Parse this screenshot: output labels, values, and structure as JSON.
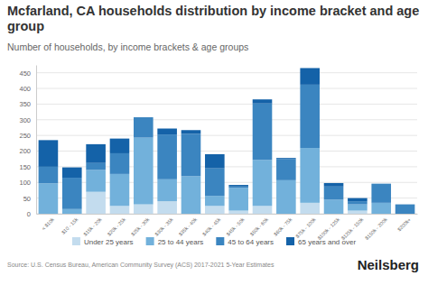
{
  "chart_data": {
    "type": "bar",
    "stacked": true,
    "title": "Mcfarland, CA households distribution by income bracket and age group",
    "subtitle": "Number of households, by income brackets & age groups",
    "source": "Source: U.S. Census Bureau, American Community Survey (ACS) 2017-2021 5-Year Estimates",
    "logo": "Neilsberg",
    "categories": [
      "< $10k",
      "$10 - 15k",
      "$15k - 20k",
      "$20k - 25k",
      "$25k - 30k",
      "$30k - 35k",
      "$35k - 40k",
      "$40k - 45k",
      "$45k - 50k",
      "$50k - 60k",
      "$60k - 75k",
      "$75k - 100k",
      "$100k - 125k",
      "$125k - 150k",
      "$150k - 200k",
      "$200k+"
    ],
    "series": [
      {
        "name": "Under 25 years",
        "color": "#c3dcee",
        "values": [
          0,
          0,
          70,
          25,
          30,
          40,
          0,
          25,
          10,
          25,
          0,
          35,
          0,
          10,
          0,
          0
        ]
      },
      {
        "name": "25 to 44 years",
        "color": "#72b1db",
        "values": [
          97,
          15,
          70,
          102,
          213,
          70,
          120,
          32,
          73,
          147,
          107,
          175,
          45,
          20,
          35,
          0
        ]
      },
      {
        "name": "45 to 64 years",
        "color": "#3b85c0",
        "values": [
          53,
          100,
          22,
          66,
          65,
          143,
          135,
          88,
          4,
          180,
          68,
          202,
          42,
          10,
          61,
          30
        ]
      },
      {
        "name": "65 years and over",
        "color": "#1462a8",
        "values": [
          85,
          33,
          60,
          47,
          0,
          19,
          12,
          45,
          5,
          13,
          3,
          53,
          11,
          10,
          0,
          0
        ]
      }
    ],
    "ylim": [
      0,
      475
    ],
    "yticks": [
      0,
      50,
      100,
      150,
      200,
      250,
      300,
      350,
      400,
      450
    ],
    "grid": true,
    "legend": "bottom"
  }
}
